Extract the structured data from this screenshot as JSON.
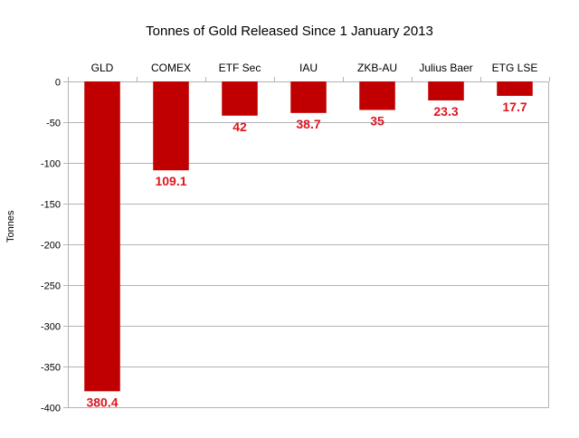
{
  "chart_data": {
    "type": "bar",
    "title": "Tonnes of Gold Released Since 1 January 2013",
    "ylabel": "Tonnes",
    "xlabel": "",
    "categories": [
      "GLD",
      "COMEX",
      "ETF Sec",
      "IAU",
      "ZKB-AU",
      "Julius Baer",
      "ETG LSE"
    ],
    "values": [
      -380.4,
      -109.1,
      -42,
      -38.7,
      -35,
      -23.3,
      -17.7
    ],
    "data_labels": [
      "380.4",
      "109.1",
      "42",
      "38.7",
      "35",
      "23.3",
      "17.7"
    ],
    "ylim": [
      -400,
      0
    ],
    "yticks": [
      0,
      -50,
      -100,
      -150,
      -200,
      -250,
      -300,
      -350,
      -400
    ],
    "ytick_labels": [
      "0",
      "-50",
      "-100",
      "-150",
      "-200",
      "-250",
      "-300",
      "-350",
      "-400"
    ],
    "category_position": "top",
    "grid": true,
    "legend": "none",
    "colors": {
      "bar": "#c00000",
      "data_label": "#e0141e",
      "grid": "#b3b3b3",
      "axis": "#b3b3b3"
    }
  }
}
